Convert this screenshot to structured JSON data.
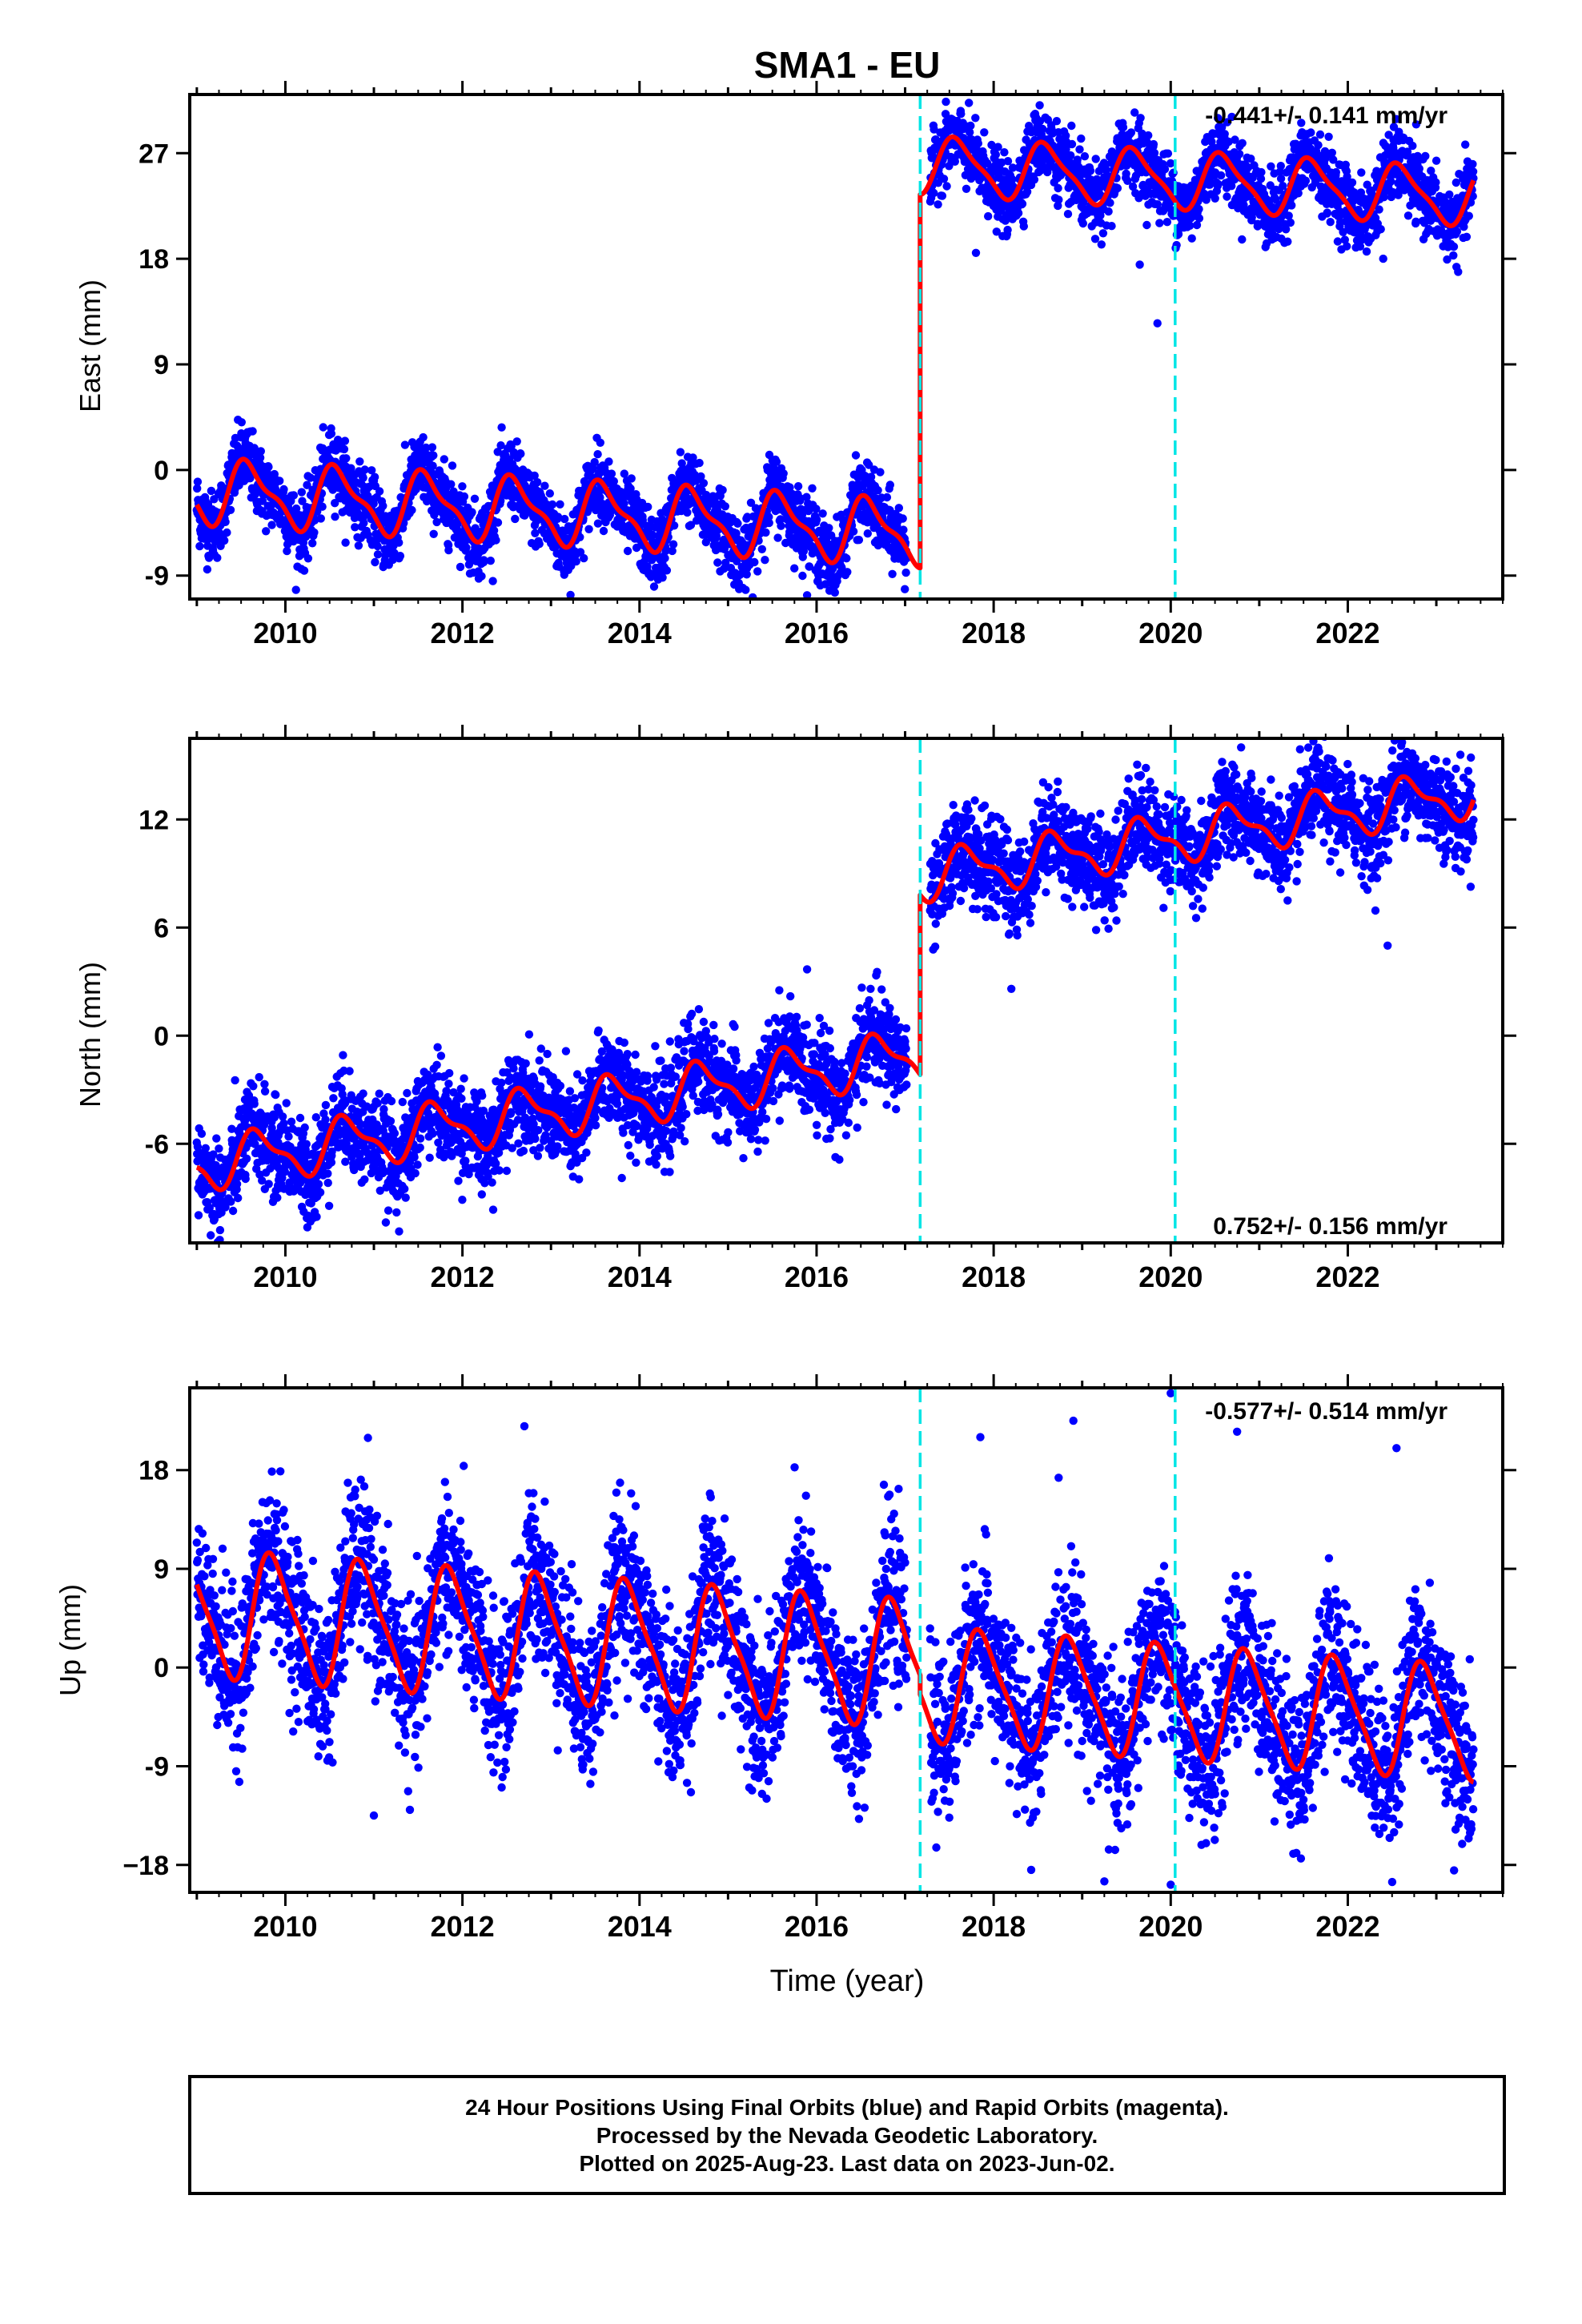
{
  "chart_data": {
    "title": "SMA1 - EU",
    "type": "scatter",
    "xlabel": "Time (year)",
    "xlim": [
      2008.92,
      2023.75
    ],
    "x_ticks": [
      2010,
      2012,
      2014,
      2016,
      2018,
      2020,
      2022
    ],
    "x_tick_labels": [
      "2010",
      "2012",
      "2014",
      "2016",
      "2018",
      "2020",
      "2022"
    ],
    "offset_lines": [
      2017.17,
      2020.05
    ],
    "colors": {
      "points": "#0000ff",
      "model": "#ff0000",
      "offsets": "#00e5e5",
      "rapid": "#ff00ff"
    },
    "panels": [
      {
        "name": "east",
        "ylabel": "East (mm)",
        "ylim": [
          -11,
          32
        ],
        "y_ticks": [
          -9,
          0,
          9,
          18,
          27
        ],
        "y_tick_labels": [
          "-9",
          "0",
          "9",
          "18",
          "27"
        ],
        "rate_label": "-0.441+/- 0.141 mm/yr",
        "rate_position": "top-right",
        "model": {
          "segments": [
            {
              "x_start": 2009.0,
              "x_end": 2017.17,
              "t0": 2009.0,
              "offset": -1.8,
              "rate": -0.441,
              "amp": 2.5,
              "phase_year": 0.35,
              "semi_amp": 0.9
            },
            {
              "x_start": 2017.17,
              "x_end": 2023.42,
              "t0": 2017.17,
              "offset": 26.0,
              "rate": -0.441,
              "amp": 2.3,
              "phase_year": 0.35,
              "semi_amp": 0.6
            }
          ]
        },
        "noise": 1.5,
        "outliers": [
          [
            2019.85,
            12.5
          ],
          [
            2019.65,
            17.5
          ],
          [
            2017.8,
            18.5
          ],
          [
            2022.4,
            18.0
          ]
        ]
      },
      {
        "name": "north",
        "ylabel": "North (mm)",
        "ylim": [
          -11.5,
          16.5
        ],
        "y_ticks": [
          -6,
          0,
          6,
          12
        ],
        "y_tick_labels": [
          "-6",
          "0",
          "6",
          "12"
        ],
        "rate_label": "0.752+/- 0.156 mm/yr",
        "rate_position": "bottom-right",
        "model": {
          "segments": [
            {
              "x_start": 2009.0,
              "x_end": 2017.17,
              "t0": 2009.0,
              "offset": -7.2,
              "rate": 0.752,
              "amp": 1.3,
              "phase_year": 0.45,
              "semi_amp": 0.5
            },
            {
              "x_start": 2017.17,
              "x_end": 2023.42,
              "t0": 2017.17,
              "offset": 8.8,
              "rate": 0.752,
              "amp": 1.2,
              "phase_year": 0.45,
              "semi_amp": 0.5
            }
          ]
        },
        "noise": 1.3,
        "outliers": [
          [
            2018.2,
            2.6
          ],
          [
            2022.45,
            5.0
          ],
          [
            2012.5,
            -7.5
          ],
          [
            2013.8,
            -7.9
          ]
        ]
      },
      {
        "name": "up",
        "ylabel": "Up (mm)",
        "ylim": [
          -20.5,
          25.5
        ],
        "y_ticks": [
          -18,
          -9,
          0,
          9,
          18
        ],
        "y_tick_labels": [
          "−18",
          "-9",
          "0",
          "9",
          "18"
        ],
        "rate_label": "-0.577+/- 0.514 mm/yr",
        "rate_position": "top-right",
        "model": {
          "segments": [
            {
              "x_start": 2009.0,
              "x_end": 2017.17,
              "t0": 2009.0,
              "offset": 5.0,
              "rate": -0.577,
              "amp": 5.5,
              "phase_year": 0.62,
              "semi_amp": 1.2
            },
            {
              "x_start": 2017.17,
              "x_end": 2023.42,
              "t0": 2017.17,
              "offset": -1.5,
              "rate": -0.577,
              "amp": 5.0,
              "phase_year": 0.62,
              "semi_amp": 1.0
            }
          ]
        },
        "noise": 3.6,
        "outliers": [
          [
            2020.0,
            -19.8
          ],
          [
            2020.0,
            25.0
          ],
          [
            2020.75,
            21.5
          ],
          [
            2018.9,
            22.5
          ],
          [
            2017.85,
            21.0
          ],
          [
            2022.55,
            20.0
          ],
          [
            2012.7,
            22.0
          ],
          [
            2011.0,
            -13.5
          ],
          [
            2019.25,
            -19.5
          ],
          [
            2023.2,
            -18.5
          ]
        ]
      }
    ]
  },
  "footer": {
    "line1": "24 Hour Positions Using Final Orbits (blue) and Rapid Orbits (magenta).",
    "line2": "Processed by the Nevada Geodetic Laboratory.",
    "line3": "Plotted on 2025-Aug-23. Last data on 2023-Jun-02."
  }
}
